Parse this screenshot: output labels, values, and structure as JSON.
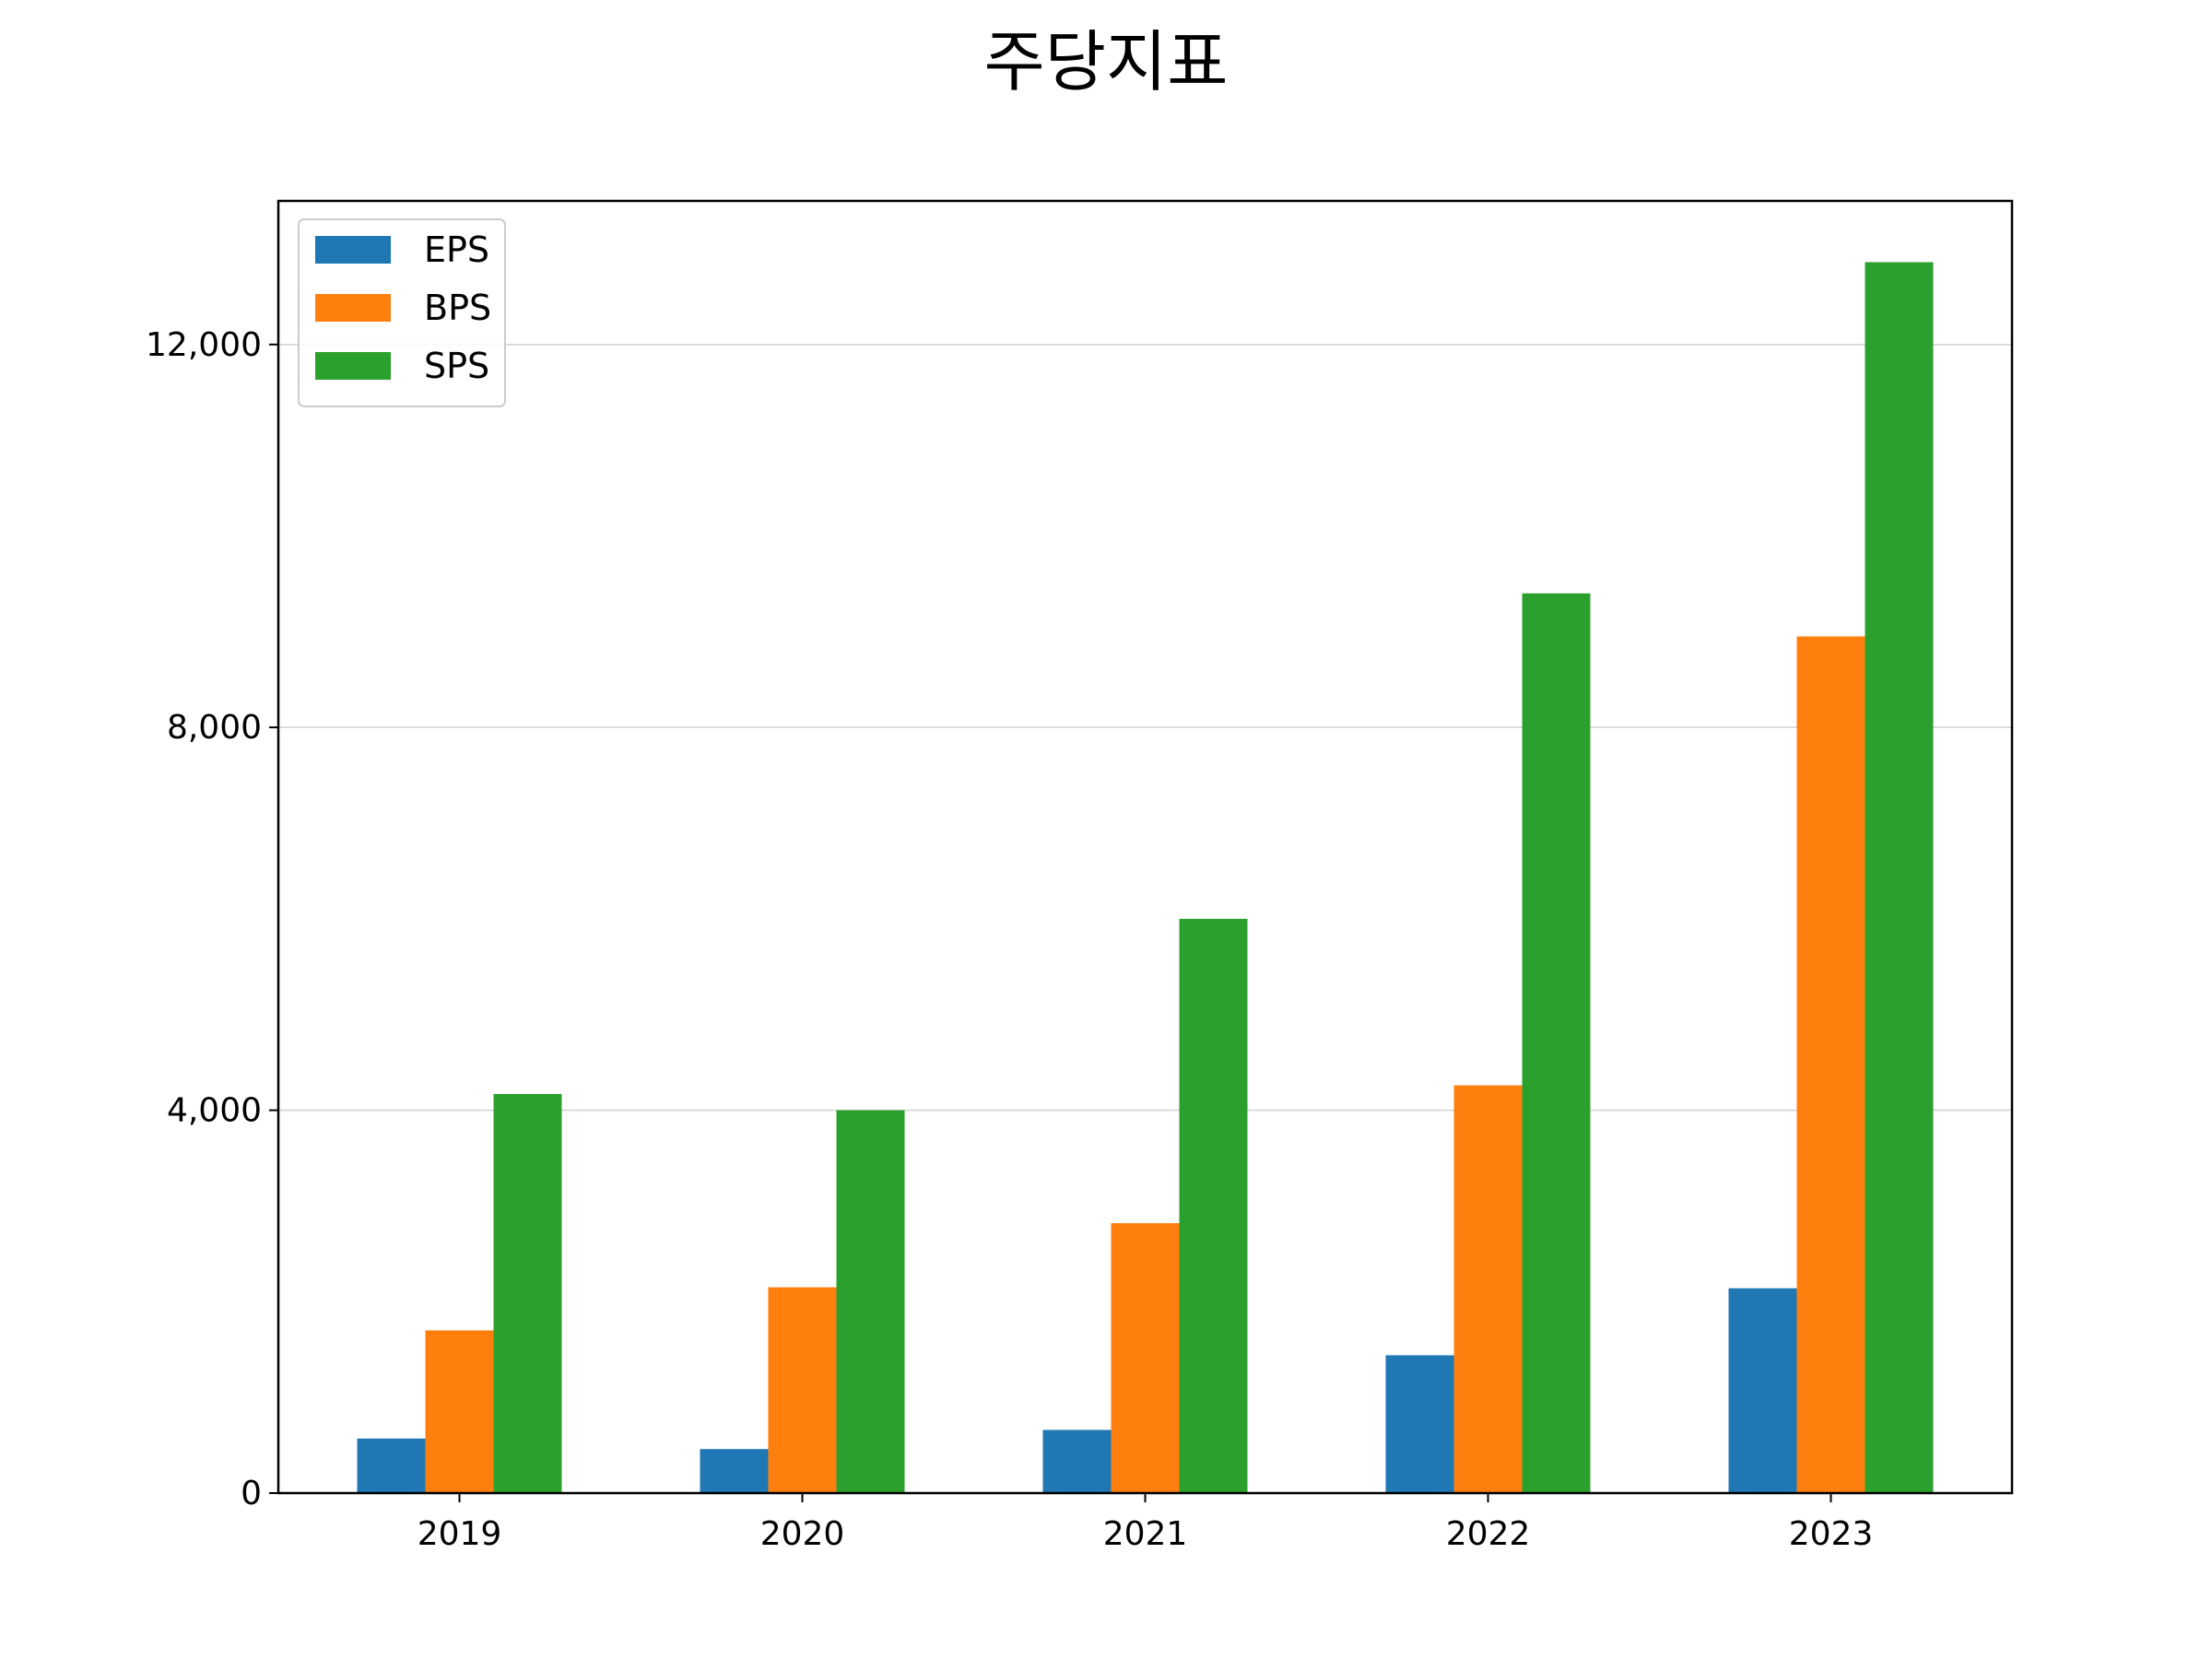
{
  "chart_data": {
    "type": "bar",
    "title": "주당지표",
    "xlabel": "",
    "ylabel": "",
    "categories": [
      "2019",
      "2020",
      "2021",
      "2022",
      "2023"
    ],
    "series": [
      {
        "name": "EPS",
        "color": "#1f77b4",
        "values": [
          570,
          460,
          660,
          1440,
          2140
        ]
      },
      {
        "name": "BPS",
        "color": "#ff7f0e",
        "values": [
          1700,
          2150,
          2820,
          4260,
          8950
        ]
      },
      {
        "name": "SPS",
        "color": "#2ca02c",
        "values": [
          4170,
          4000,
          6000,
          9400,
          12860
        ]
      }
    ],
    "ylim": [
      0,
      13500
    ],
    "yticks": [
      0,
      4000,
      8000,
      12000
    ],
    "ytick_labels": [
      "0",
      "4,000",
      "8,000",
      "12,000"
    ],
    "grid": "horizontal",
    "legend_position": "top-left"
  }
}
